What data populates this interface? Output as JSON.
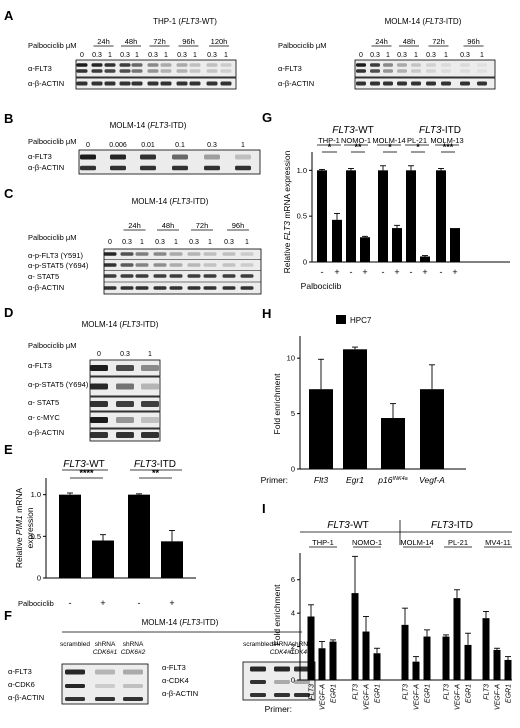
{
  "panels": {
    "A": {
      "letter": "A",
      "left": {
        "title_pre": "THP-1 (",
        "title_gene": "FLT3",
        "title_post": "-WT)",
        "drug_label": "Palbociclib μM",
        "times": [
          "24h",
          "48h",
          "72h",
          "96h",
          "120h"
        ],
        "doses": [
          "0",
          "0.3",
          "1",
          "0.3",
          "1",
          "0.3",
          "1",
          "0.3",
          "1",
          "0.3",
          "1"
        ],
        "rows": [
          "α-FLT3",
          "α-β-ACTIN"
        ]
      },
      "right": {
        "title_pre": "MOLM-14 (",
        "title_gene": "FLT3",
        "title_post": "-ITD)",
        "drug_label": "Palbociclib μM",
        "times": [
          "24h",
          "48h",
          "72h",
          "96h"
        ],
        "doses": [
          "0",
          "0.3",
          "1",
          "0.3",
          "1",
          "0.3",
          "1",
          "0.3",
          "1"
        ],
        "rows": [
          "α-FLT3",
          "α-β-ACTIN"
        ]
      }
    },
    "B": {
      "letter": "B",
      "title_pre": "MOLM-14 (",
      "title_gene": "FLT3",
      "title_post": "-ITD)",
      "drug_label": "Palbociclib μM",
      "doses": [
        "0",
        "0.006",
        "0.01",
        "0.1",
        "0.3",
        "1"
      ],
      "rows": [
        "α-FLT3",
        "α-β-ACTIN"
      ]
    },
    "C": {
      "letter": "C",
      "title_pre": "MOLM-14 (",
      "title_gene": "FLT3",
      "title_post": "-ITD)",
      "drug_label": "Palbociclib μM",
      "times": [
        "24h",
        "48h",
        "72h",
        "96h"
      ],
      "doses": [
        "0",
        "0.3",
        "1",
        "0.3",
        "1",
        "0.3",
        "1",
        "0.3",
        "1"
      ],
      "rows": [
        "α-p-FLT3 (Y591)",
        "α-p-STAT5 (Y694)",
        "α- STAT5",
        "α-β-ACTIN"
      ]
    },
    "D": {
      "letter": "D",
      "title_pre": "MOLM-14 (",
      "title_gene": "FLT3",
      "title_post": "-ITD)",
      "drug_label": "Palbociclib μM",
      "doses": [
        "0",
        "0.3",
        "1"
      ],
      "rows": [
        "α-FLT3",
        "α-p-STAT5 (Y694)",
        "α- STAT5",
        "α- c-MYC",
        "α-β-ACTIN"
      ]
    },
    "F": {
      "letter": "F",
      "title_pre": "MOLM-14 (",
      "title_gene": "FLT3",
      "title_post": "-ITD)",
      "left_cols": [
        "scrambled",
        "shRNA",
        "shRNA"
      ],
      "left_subs": [
        "",
        "CDK6#1",
        "CDK6#2"
      ],
      "left_rows": [
        "α-FLT3",
        "α-CDK6",
        "α-β-ACTIN"
      ],
      "right_cols": [
        "scrambled",
        "shRNA",
        "shRNA"
      ],
      "right_subs": [
        "",
        "CDK4#1",
        "CDK4#2"
      ],
      "right_rows": [
        "α-FLT3",
        "α-CDK4",
        "α-β-ACTIN"
      ]
    },
    "G_letter": "G",
    "H_letter": "H",
    "I_letter": "I",
    "E_letter": "E"
  },
  "chart_data": [
    {
      "id": "E",
      "type": "bar",
      "groups": [
        {
          "gene": "FLT3",
          "suffix": "-WT"
        },
        {
          "gene": "FLT3",
          "suffix": "-ITD"
        }
      ],
      "categories": [
        "-",
        "+",
        "-",
        "+"
      ],
      "values": [
        1.0,
        0.45,
        1.0,
        0.44
      ],
      "errors": [
        0.02,
        0.07,
        0.01,
        0.13
      ],
      "significance": [
        "****",
        "**"
      ],
      "ylabel_pre": "Relative ",
      "ylabel_gene": "PIM1",
      "ylabel_post": " mRNA",
      "ylabel_line2": "expression",
      "xlabel": "Palbociclib",
      "ylim": [
        0,
        1.2
      ],
      "yticks": [
        "0",
        "0.5",
        "1.0"
      ]
    },
    {
      "id": "G",
      "type": "bar",
      "groups": [
        {
          "gene": "FLT3",
          "suffix": "-WT"
        },
        {
          "gene": "FLT3",
          "suffix": "-ITD"
        }
      ],
      "cell_lines": [
        "THP-1",
        "NOMO-1",
        "MOLM-14",
        "PL-21",
        "MOLM-13"
      ],
      "categories": [
        "-",
        "+",
        "-",
        "+",
        "-",
        "+",
        "-",
        "+",
        "-",
        "+"
      ],
      "values": [
        1.0,
        0.46,
        1.0,
        0.27,
        1.0,
        0.37,
        1.0,
        0.06,
        1.0,
        0.37
      ],
      "errors": [
        0.01,
        0.07,
        0.02,
        0.01,
        0.05,
        0.03,
        0.05,
        0.01,
        0.02,
        0.0
      ],
      "significance": [
        "*",
        "**",
        "*",
        "*",
        "***"
      ],
      "ylabel_pre": "Relative ",
      "ylabel_gene": "FLT3",
      "ylabel_post": " mRNA expression",
      "xlabel": "Palbociclib",
      "ylim": [
        0,
        1.2
      ],
      "yticks": [
        "0",
        "0.5",
        "1.0"
      ]
    },
    {
      "id": "H",
      "type": "bar",
      "legend": "HPC7",
      "categories": [
        "Flt3",
        "Egr1",
        "p16",
        "Vegf-A"
      ],
      "p16_superscript": "INK4a",
      "values": [
        7.2,
        10.8,
        4.6,
        7.2
      ],
      "errors": [
        2.7,
        0.2,
        1.3,
        2.2
      ],
      "ylabel": "Fold enrichment",
      "xlabel": "Primer:",
      "ylim": [
        0,
        12
      ],
      "yticks": [
        "0",
        "5",
        "10"
      ]
    },
    {
      "id": "I",
      "type": "bar",
      "groups": [
        {
          "gene": "FLT3",
          "suffix": "-WT"
        },
        {
          "gene": "FLT3",
          "suffix": "-ITD"
        }
      ],
      "cell_lines": [
        "THP-1",
        "NOMO-1",
        "MOLM-14",
        "PL-21",
        "MV4-11"
      ],
      "primers": [
        "FLT3",
        "VEGF-A",
        "EGR1"
      ],
      "values": [
        3.8,
        1.9,
        2.3,
        5.2,
        2.9,
        1.6,
        3.3,
        1.1,
        2.6,
        2.6,
        4.9,
        2.1,
        3.7,
        1.8,
        1.2
      ],
      "errors": [
        0.7,
        0.4,
        0.1,
        2.2,
        0.9,
        0.3,
        1.0,
        0.3,
        0.4,
        0.1,
        0.5,
        0.7,
        0.4,
        0.1,
        0.2
      ],
      "ylabel": "Fold enrichment",
      "xlabel": "Primer:",
      "ylim": [
        0,
        7.6
      ],
      "yticks": [
        "0",
        "2",
        "4",
        "6"
      ]
    }
  ]
}
